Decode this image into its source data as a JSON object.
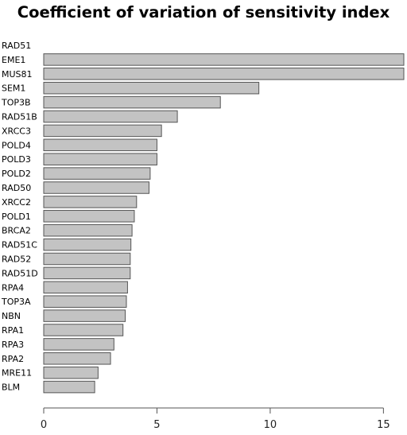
{
  "chart_data": {
    "type": "bar",
    "orientation": "horizontal",
    "title": "Coefficient of variation of sensitivity index",
    "xlabel": "",
    "ylabel": "",
    "categories": [
      "RAD51",
      "EME1",
      "MUS81",
      "SEM1",
      "TOP3B",
      "RAD51B",
      "XRCC3",
      "POLD4",
      "POLD3",
      "POLD2",
      "RAD50",
      "XRCC2",
      "POLD1",
      "BRCA2",
      "RAD51C",
      "RAD52",
      "RAD51D",
      "RPA4",
      "TOP3A",
      "NBN",
      "RPA1",
      "RPA3",
      "RPA2",
      "MRE11",
      "BLM"
    ],
    "values": [
      0,
      15.9,
      15.9,
      9.5,
      7.8,
      5.9,
      5.2,
      5.0,
      5.0,
      4.7,
      4.65,
      4.1,
      4.0,
      3.9,
      3.85,
      3.82,
      3.82,
      3.7,
      3.65,
      3.6,
      3.5,
      3.1,
      2.95,
      2.4,
      2.25
    ],
    "xlim": [
      0,
      15.9
    ],
    "xticks": [
      "0",
      "5",
      "10",
      "15"
    ],
    "grid": false,
    "colors": {
      "bar_fill": "#c3c3c3",
      "bar_stroke": "#555555"
    }
  }
}
